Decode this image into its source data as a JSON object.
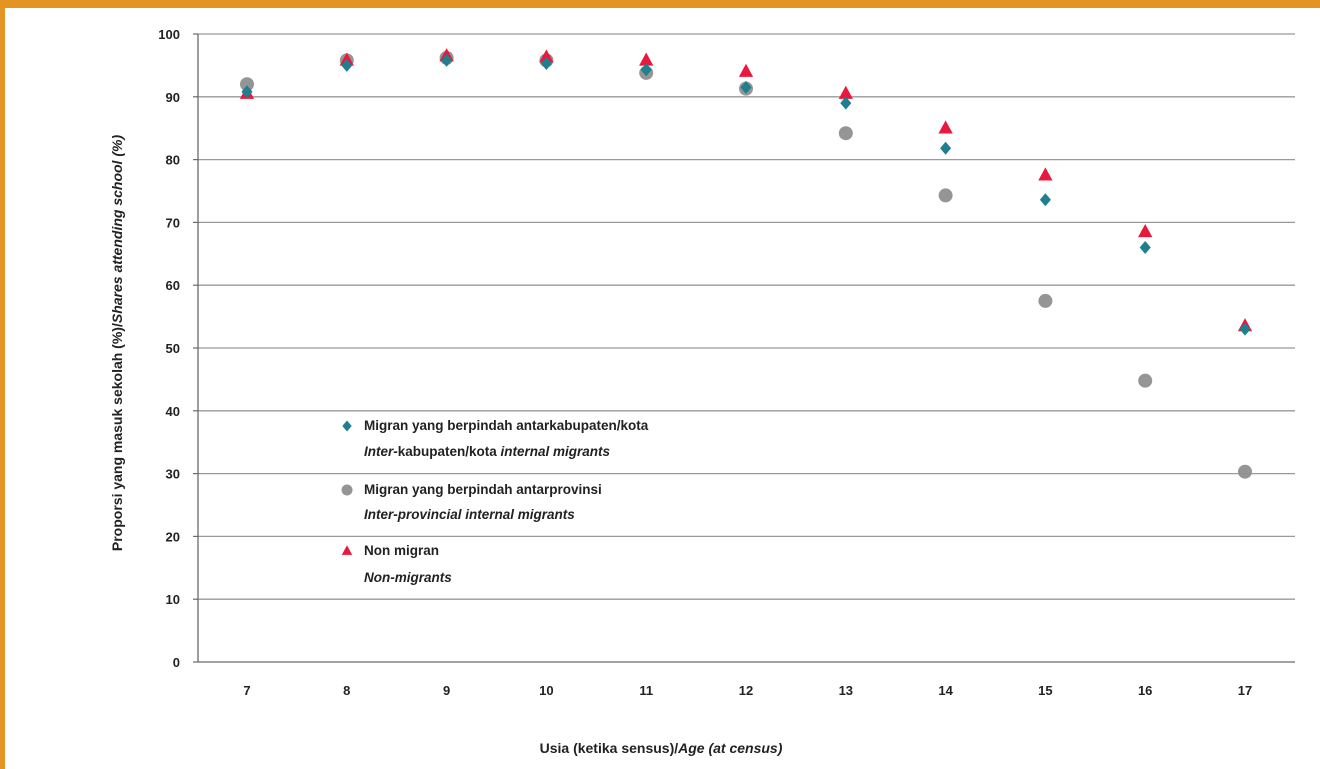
{
  "chart_data": {
    "type": "scatter",
    "categories": [
      "7",
      "8",
      "9",
      "10",
      "11",
      "12",
      "13",
      "14",
      "15",
      "16",
      "17"
    ],
    "title": "",
    "xlabel_parts": [
      {
        "text": "Usia (ketika sensus)/",
        "italic": false
      },
      {
        "text": "Age (at census)",
        "italic": true
      }
    ],
    "ylabel_parts": [
      {
        "text": "Proporsi yang masuk sekolah (%)/",
        "italic": false
      },
      {
        "text": "Shares attending school (%)",
        "italic": true
      }
    ],
    "ylim": [
      0,
      100
    ],
    "yticks": [
      "0",
      "10",
      "20",
      "30",
      "40",
      "50",
      "60",
      "70",
      "80",
      "90",
      "100"
    ],
    "grid": true,
    "legend_position": "center-left",
    "series": [
      {
        "name_line1": "Migran yang berpindah antarkabupaten/kota",
        "name_line2_parts": [
          {
            "text": "Inter-",
            "italic": true
          },
          {
            "text": "kabupaten/kota ",
            "italic": false
          },
          {
            "text": "internal migrants",
            "italic": true
          }
        ],
        "marker": "diamond",
        "color": "#1f7f8e",
        "values": [
          90.8,
          95.0,
          95.8,
          95.3,
          94.3,
          91.5,
          89.0,
          81.8,
          73.6,
          66.0,
          53.0
        ]
      },
      {
        "name_line1": "Migran yang berpindah antarprovinsi",
        "name_line2_parts": [
          {
            "text": "Inter-provincial internal migrants",
            "italic": true
          }
        ],
        "marker": "circle",
        "color": "#8f8f8f",
        "values": [
          92.0,
          95.8,
          96.2,
          95.8,
          93.8,
          91.3,
          84.2,
          74.3,
          57.5,
          44.8,
          30.3
        ]
      },
      {
        "name_line1": "Non migran",
        "name_line2_parts": [
          {
            "text": "Non-migrants",
            "italic": true
          }
        ],
        "marker": "triangle",
        "color": "#e8193c",
        "values": [
          90.5,
          95.8,
          96.5,
          96.3,
          95.8,
          94.0,
          90.5,
          85.0,
          77.5,
          68.5,
          53.5
        ]
      }
    ]
  }
}
